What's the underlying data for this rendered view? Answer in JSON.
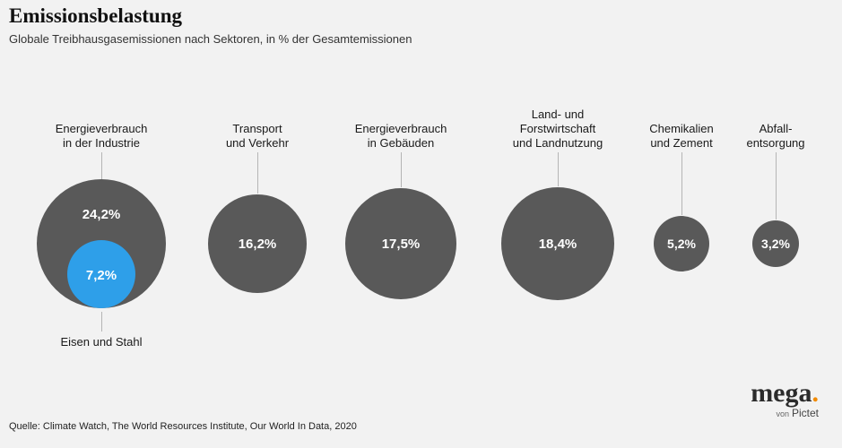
{
  "page": {
    "title": "Emissionsbelastung",
    "subtitle": "Globale Treibhausgasemissionen nach Sektoren, in % der Gesamtemissionen",
    "source": "Quelle: Climate Watch, The World Resources Institute, Our World In Data, 2020"
  },
  "logo": {
    "wordmark": "mega",
    "dot": ".",
    "tagline_prefix": "von",
    "tagline_name": "Pictet"
  },
  "colors": {
    "background": "#f2f2f2",
    "bubble": "#595959",
    "highlight_bubble": "#2e9fe9",
    "accent_dot": "#f18a00",
    "value_text": "#ffffff",
    "connector": "#b5b5b5"
  },
  "chart_data": {
    "type": "bubble",
    "title": "Emissionsbelastung",
    "subtitle": "Globale Treibhausgasemissionen nach Sektoren, in % der Gesamtemissionen",
    "unit": "% der Gesamtemissionen",
    "bubbles": [
      {
        "label_lines": [
          "Energieverbrauch",
          "in der Industrie",
          ""
        ],
        "value": 24.2,
        "value_label": "24,2%",
        "sub_bubble": {
          "label": "Eisen und Stahl",
          "value": 7.2,
          "value_label": "7,2%"
        }
      },
      {
        "label_lines": [
          "Transport",
          "und Verkehr",
          ""
        ],
        "value": 16.2,
        "value_label": "16,2%"
      },
      {
        "label_lines": [
          "Energieverbrauch",
          "in Gebäuden",
          ""
        ],
        "value": 17.5,
        "value_label": "17,5%"
      },
      {
        "label_lines": [
          "Land- und",
          "Forstwirtschaft",
          "und Landnutzung"
        ],
        "value": 18.4,
        "value_label": "18,4%"
      },
      {
        "label_lines": [
          "Chemikalien",
          "und Zement",
          ""
        ],
        "value": 5.2,
        "value_label": "5,2%"
      },
      {
        "label_lines": [
          "Abfall-",
          "entsorgung",
          ""
        ],
        "value": 3.2,
        "value_label": "3,2%"
      }
    ]
  }
}
